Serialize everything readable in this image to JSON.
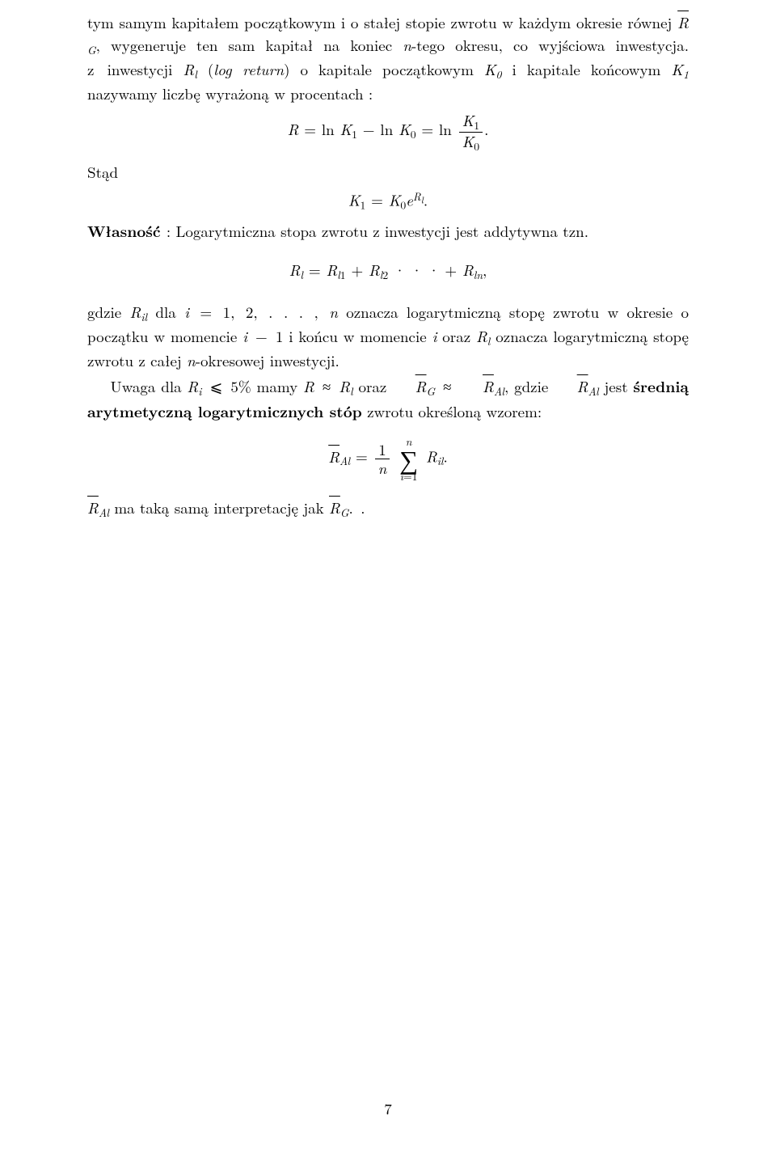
{
  "p1": "tym samym kapitałem początkowym i o stałej stopie zwrotu w każdym okresie równej R̄_G, wygeneruje ten sam kapitał na koniec n-tego okresu, co wyjściowa inwestycja. z inwestycji R_l (log return) o kapitale początkowym K_0 i kapitale końcowym K_1 nazywamy liczbę wyrażoną w procentach :",
  "stad": "Stąd",
  "wlasnosc": "Własność ",
  "wlasnosc_rest": ": Logarytmiczna stopa zwrotu z inwestycji jest addytywna tzn.",
  "gdzie_pre": "gdzie ",
  "gdzie_post1": " dla ",
  "gdzie_post2": " oznacza logarytmiczną stopę zwrotu w okresie o początku w momencie ",
  "gdzie_post3": " i końcu w momencie ",
  "gdzie_post4": " oraz ",
  "gdzie_post5": " oznacza logarytmiczną stopę zwrotu z całej ",
  "gdzie_post6": "-okresowej inwestycji.",
  "uwaga_pre": "Uwaga dla ",
  "uwaga_mid1": " mamy ",
  "uwaga_mid2": " oraz ",
  "uwaga_mid3": ", gdzie ",
  "uwaga_mid4": " jest ",
  "uwaga_bold": "średnią arytmetyczną logarytmicznych stóp",
  "uwaga_tail": " zwrotu określoną wzorem:",
  "interp": " ma taką samą interpretację jak ",
  "page_number": "7"
}
